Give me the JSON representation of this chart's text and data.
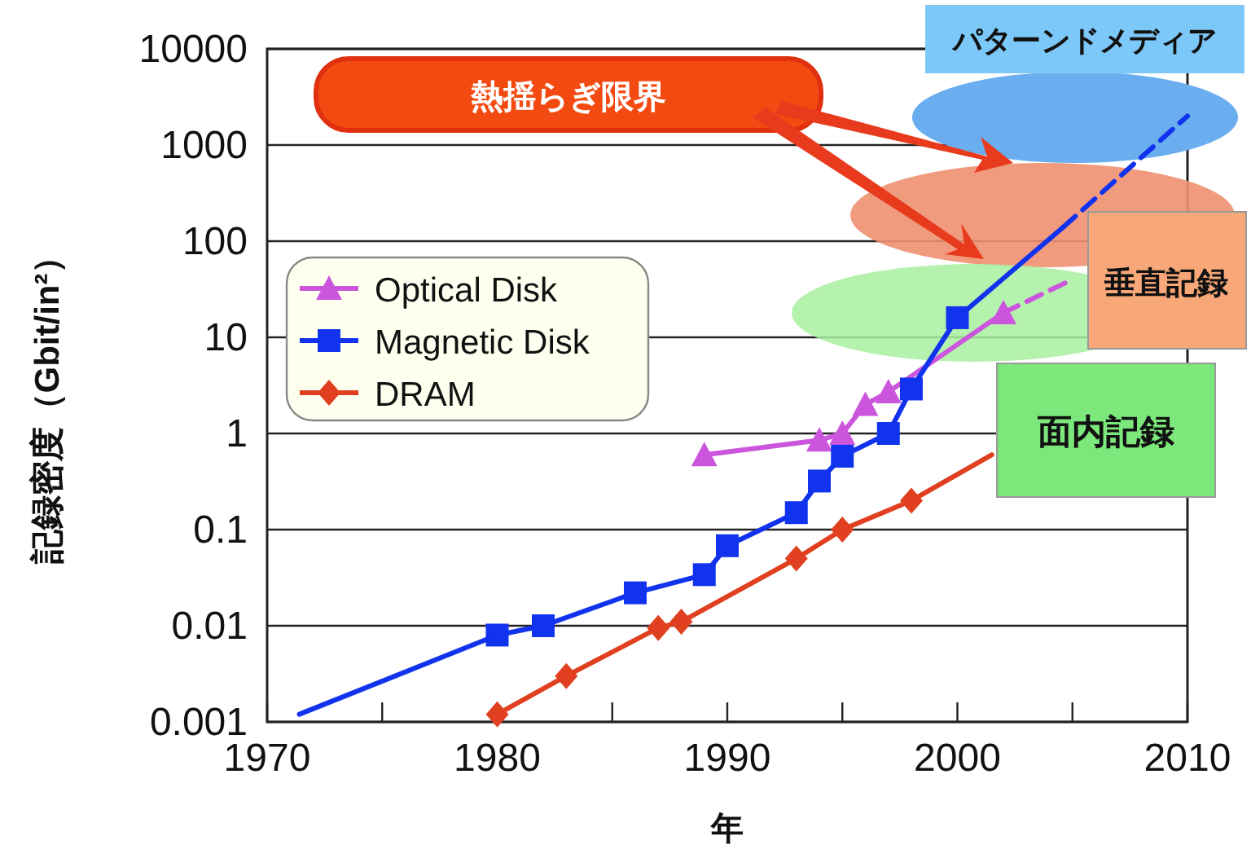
{
  "chart_data": {
    "type": "line",
    "xlabel": "年",
    "ylabel": "記録密度（Gbit/in²）",
    "log": "y",
    "grid": "y",
    "legend": "left",
    "xlim": [
      1970,
      2010
    ],
    "xticks": [
      1970,
      {
        "value": 1975,
        "label": null
      },
      1980,
      {
        "value": 1985,
        "label": null
      },
      1990,
      {
        "value": 1995,
        "label": null
      },
      2000,
      {
        "value": 2005,
        "label": null
      },
      2010
    ],
    "ylim": [
      0.001,
      10000
    ],
    "yticks": [
      0.001,
      0.01,
      0.1,
      1,
      10,
      100,
      1000,
      10000
    ],
    "annotations": [
      "熱揺らぎ限界",
      "パターンドメディア",
      "垂直記録",
      "面内記録"
    ],
    "series": [
      {
        "name": "Optical Disk",
        "color": "#cc55dd",
        "marker": "triangle",
        "x": [
          1989,
          1994,
          1995,
          1996,
          1997,
          2002
        ],
        "values": [
          0.6,
          0.85,
          1,
          2,
          2.7,
          18
        ]
      },
      {
        "name": "Magnetic Disk",
        "color": "#1133ee",
        "marker": "square",
        "x": [
          1980,
          1982,
          1986,
          1989,
          1990,
          1993,
          1994,
          1995,
          1997,
          1998,
          2000
        ],
        "values": [
          0.008,
          0.01,
          0.022,
          0.034,
          0.068,
          0.15,
          0.32,
          0.58,
          1,
          2.9,
          16
        ]
      },
      {
        "name": "DRAM",
        "color": "#e04020",
        "marker": "diamond",
        "x": [
          1980,
          1983,
          1987,
          1988,
          1993,
          1995,
          1998
        ],
        "values": [
          0.0012,
          0.003,
          0.0095,
          0.011,
          0.05,
          0.1,
          0.2
        ]
      },
      {
        "color": "#cc55dd",
        "line_style": "dashed",
        "x": [
          2002,
          2005
        ],
        "values": [
          18,
          40
        ]
      },
      {
        "color": "#1133ee",
        "x": [
          1971.4,
          1980
        ],
        "values": [
          0.0012,
          0.008
        ]
      },
      {
        "color": "#1133ee",
        "x": [
          2000,
          2004.6
        ],
        "values": [
          16,
          140
        ]
      },
      {
        "color": "#1133ee",
        "line_style": "dashed",
        "x": [
          2004.6,
          2010
        ],
        "values": [
          140,
          2000
        ]
      },
      {
        "color": "#e04020",
        "x": [
          1998,
          2001.5
        ],
        "values": [
          0.2,
          0.6
        ]
      }
    ]
  }
}
